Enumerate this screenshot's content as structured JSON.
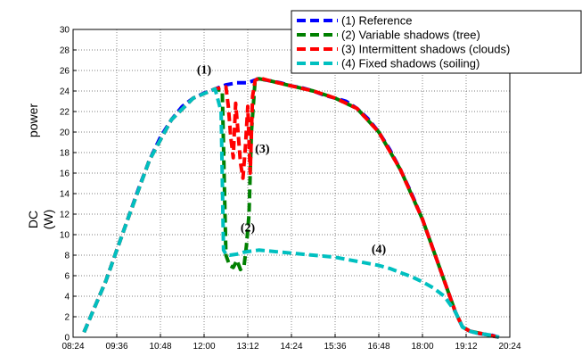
{
  "chart_data": {
    "type": "line",
    "xlabel": "",
    "ylabel_parts": [
      "DC",
      "power",
      "(W)"
    ],
    "ylim": [
      0,
      30
    ],
    "y_ticks": [
      "0",
      "2",
      "4",
      "6",
      "8",
      "10",
      "12",
      "14",
      "16",
      "18",
      "20",
      "22",
      "24",
      "26",
      "28",
      "30"
    ],
    "xlim": [
      "08:24",
      "20:24"
    ],
    "x_ticks": [
      "08:24",
      "09:36",
      "10:48",
      "12:00",
      "13:12",
      "14:24",
      "15:36",
      "16:48",
      "18:00",
      "19:12",
      "20:24"
    ],
    "grid": "dotted",
    "legend_position": "top-right",
    "series": [
      {
        "name": "(1) Reference",
        "color": "#0000ff",
        "x": [
          "08:42",
          "09:00",
          "09:18",
          "09:36",
          "09:54",
          "10:12",
          "10:30",
          "10:48",
          "11:06",
          "11:24",
          "11:42",
          "12:00",
          "12:18",
          "12:36",
          "12:54",
          "13:12",
          "13:30",
          "13:48",
          "14:06",
          "14:24",
          "14:42",
          "15:00",
          "15:18",
          "15:36",
          "15:54",
          "16:12",
          "16:30",
          "16:48",
          "17:06",
          "17:24",
          "17:42",
          "18:00",
          "18:18",
          "18:36",
          "18:54",
          "19:06",
          "19:18",
          "19:30",
          "19:42",
          "19:54",
          "20:06"
        ],
        "y": [
          0.5,
          3.0,
          5.5,
          8.5,
          11.5,
          14.5,
          17.3,
          19.5,
          21.2,
          22.5,
          23.3,
          23.8,
          24.2,
          24.6,
          24.8,
          24.8,
          25.2,
          25.0,
          24.8,
          24.5,
          24.3,
          24.0,
          23.6,
          23.3,
          23.0,
          22.3,
          21.3,
          20.0,
          18.3,
          16.3,
          14.0,
          11.5,
          8.5,
          5.5,
          2.5,
          1.0,
          0.6,
          0.4,
          0.3,
          0.2,
          0.0
        ]
      },
      {
        "name": "(2) Variable shadows (tree)",
        "color": "#008000",
        "x": [
          "08:42",
          "09:18",
          "09:54",
          "10:30",
          "11:06",
          "11:42",
          "12:18",
          "12:30",
          "12:36",
          "12:42",
          "12:48",
          "12:54",
          "13:00",
          "13:06",
          "13:10",
          "13:14",
          "13:18",
          "13:24",
          "13:30",
          "13:48",
          "14:24",
          "15:00",
          "15:36",
          "16:12",
          "16:48",
          "17:24",
          "18:00",
          "18:36",
          "18:54",
          "19:06",
          "19:18",
          "19:42",
          "20:06"
        ],
        "y": [
          0.5,
          5.5,
          11.5,
          17.3,
          21.2,
          23.3,
          24.2,
          24.0,
          8.0,
          7.0,
          6.8,
          7.5,
          6.6,
          7.0,
          9.0,
          12.0,
          20.0,
          25.0,
          25.2,
          25.0,
          24.5,
          24.0,
          23.3,
          22.3,
          20.0,
          16.3,
          11.5,
          5.5,
          2.5,
          1.0,
          0.6,
          0.3,
          0.0
        ]
      },
      {
        "name": "(3) Intermittent shadows (clouds)",
        "color": "#ff0000",
        "x": [
          "08:42",
          "09:18",
          "09:54",
          "10:30",
          "11:06",
          "11:42",
          "12:18",
          "12:36",
          "12:40",
          "12:44",
          "12:48",
          "12:52",
          "12:56",
          "13:00",
          "13:04",
          "13:08",
          "13:12",
          "13:16",
          "13:20",
          "13:24",
          "13:30",
          "13:48",
          "14:24",
          "15:00",
          "15:36",
          "16:12",
          "16:48",
          "17:24",
          "18:00",
          "18:36",
          "18:54",
          "19:06",
          "19:18",
          "19:42",
          "20:06"
        ],
        "y": [
          0.5,
          5.5,
          11.5,
          17.3,
          21.2,
          23.3,
          24.2,
          24.4,
          22.5,
          19.5,
          17.5,
          22.8,
          20.0,
          17.0,
          15.5,
          18.5,
          22.5,
          16.0,
          23.5,
          25.0,
          25.3,
          25.0,
          24.5,
          24.0,
          23.3,
          22.3,
          20.0,
          16.3,
          11.5,
          5.5,
          2.5,
          1.0,
          0.6,
          0.3,
          0.0
        ]
      },
      {
        "name": "(4) Fixed shadows (soiling)",
        "color": "#00c0c0",
        "x": [
          "08:42",
          "09:18",
          "09:54",
          "10:30",
          "11:06",
          "11:42",
          "12:18",
          "12:28",
          "12:32",
          "12:36",
          "12:42",
          "12:54",
          "13:06",
          "13:18",
          "13:30",
          "13:48",
          "14:06",
          "14:24",
          "14:42",
          "15:00",
          "15:18",
          "15:36",
          "15:54",
          "16:12",
          "16:30",
          "16:48",
          "17:06",
          "17:24",
          "17:42",
          "18:00",
          "18:18",
          "18:36",
          "18:54",
          "19:06",
          "19:18",
          "19:30",
          "19:42",
          "19:54",
          "20:06"
        ],
        "y": [
          0.5,
          5.5,
          11.5,
          17.3,
          21.2,
          23.3,
          24.2,
          22.0,
          8.5,
          8.1,
          8.0,
          8.1,
          8.3,
          8.4,
          8.5,
          8.4,
          8.3,
          8.2,
          8.1,
          8.0,
          7.9,
          7.8,
          7.6,
          7.4,
          7.2,
          7.0,
          6.7,
          6.3,
          5.9,
          5.4,
          4.8,
          4.0,
          2.5,
          1.0,
          0.6,
          0.4,
          0.3,
          0.2,
          0.0
        ]
      }
    ],
    "annotations": [
      {
        "text": "(1)",
        "x": "12:00",
        "y": 25.7
      },
      {
        "text": "(3)",
        "x": "13:36",
        "y": 18.0
      },
      {
        "text": "(2)",
        "x": "13:12",
        "y": 10.3
      },
      {
        "text": "(4)",
        "x": "16:48",
        "y": 8.2
      }
    ]
  }
}
